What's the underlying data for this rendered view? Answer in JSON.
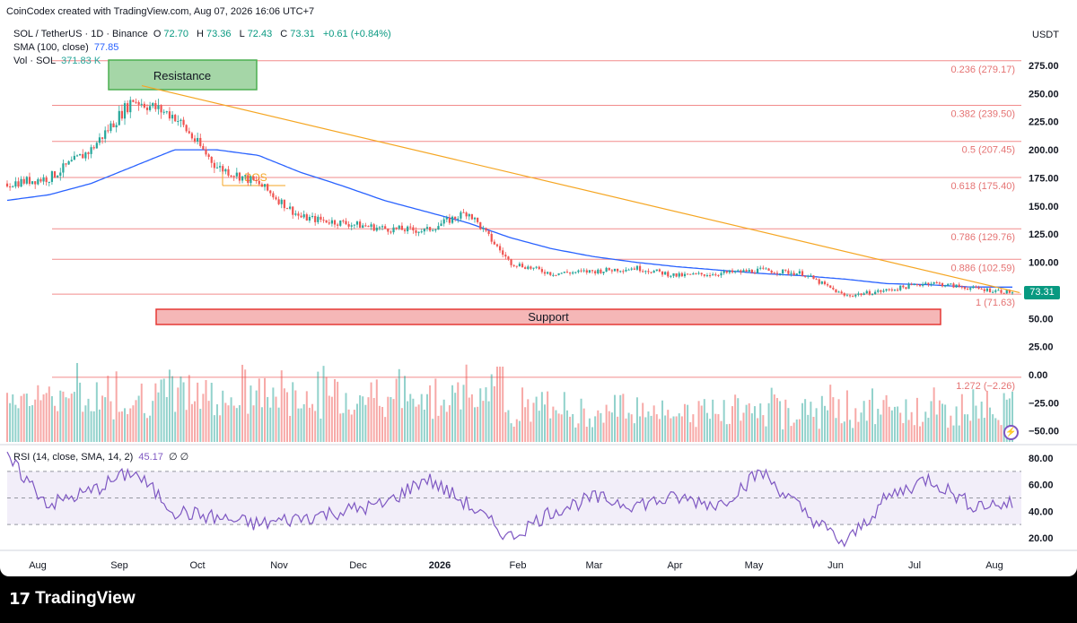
{
  "attribution": "CoinCodex created with TradingView.com, Aug 07, 2026 16:06 UTC+7",
  "legend": {
    "symbol": "SOL / TetherUS · 1D · Binance",
    "o_label": "O",
    "o": "72.70",
    "h_label": "H",
    "h": "73.36",
    "l_label": "L",
    "l": "72.43",
    "c_label": "C",
    "c": "73.31",
    "change": "+0.61 (+0.84%)",
    "sma_label": "SMA (100, close)",
    "sma": "77.85",
    "vol_label": "Vol · SOL",
    "vol": "371.83 K",
    "rsi_label": "RSI (14, close, SMA, 14, 2)",
    "rsi": "45.17",
    "rsi_extra": "∅ ∅"
  },
  "currency": "USDT",
  "price_tag": "73.31",
  "annotations": {
    "resistance": "Resistance",
    "support": "Support",
    "bos": "BOS"
  },
  "brand": {
    "mark": "17",
    "name": "TradingView"
  },
  "colors": {
    "up": "#26a69a",
    "down": "#ef5350",
    "sma": "#2962ff",
    "fib": "#f28b8b",
    "trend": "#f5a623",
    "rsi": "#7e57c2",
    "support_fill": "#f5b7b7",
    "resistance_fill": "#a5d6a7"
  },
  "chart_data": {
    "type": "candlestick",
    "price_axis": {
      "ticks": [
        275,
        250,
        225,
        200,
        175,
        150,
        125,
        100,
        75,
        50,
        25,
        0,
        -25,
        -50
      ],
      "tick_labels": [
        "275.00",
        "250.00",
        "225.00",
        "200.00",
        "175.00",
        "150.00",
        "125.00",
        "100.00",
        "75.00",
        "50.00",
        "25.00",
        "0.00",
        "−25.00",
        "−50.00"
      ],
      "range": [
        -55,
        290
      ]
    },
    "time_axis": [
      "Aug",
      "Sep",
      "Oct",
      "Nov",
      "Dec",
      "2026",
      "Feb",
      "Mar",
      "Apr",
      "May",
      "Jun",
      "Jul",
      "Aug"
    ],
    "fib_levels": [
      {
        "label": "0.236 (279.17)",
        "value": 279.17
      },
      {
        "label": "0.382 (239.50)",
        "value": 239.5
      },
      {
        "label": "0.5 (207.45)",
        "value": 207.45
      },
      {
        "label": "0.618 (175.40)",
        "value": 175.4
      },
      {
        "label": "0.786 (129.76)",
        "value": 129.76
      },
      {
        "label": "0.886 (102.59)",
        "value": 102.59
      },
      {
        "label": "1 (71.63)",
        "value": 71.63
      },
      {
        "label": "1.272 (−2.26)",
        "value": -2.26
      }
    ],
    "price_path": {
      "months": [
        "Aug",
        "mid-Aug",
        "Sep",
        "mid-Sep",
        "Oct",
        "mid-Oct",
        "Nov",
        "mid-Nov",
        "Dec",
        "mid-Dec",
        "Jan",
        "mid-Jan",
        "Feb",
        "mid-Feb",
        "Mar",
        "mid-Mar",
        "Apr",
        "mid-Apr",
        "May",
        "mid-May",
        "Jun",
        "mid-Jun",
        "Jul",
        "mid-Jul",
        "Aug"
      ],
      "close": [
        170,
        175,
        200,
        245,
        230,
        185,
        170,
        140,
        135,
        130,
        128,
        145,
        100,
        90,
        92,
        95,
        88,
        90,
        93,
        90,
        70,
        75,
        82,
        77,
        73.31
      ]
    },
    "sma_path": [
      155,
      160,
      170,
      185,
      200,
      200,
      195,
      180,
      168,
      155,
      145,
      135,
      122,
      112,
      105,
      100,
      96,
      93,
      90,
      88,
      85,
      81,
      80,
      78,
      77.85
    ],
    "trendline": {
      "from": 257,
      "to": 73
    },
    "rsi_axis": {
      "ticks": [
        80,
        60,
        40,
        20
      ],
      "tick_labels": [
        "80.00",
        "60.00",
        "40.00",
        "20.00"
      ],
      "upper_band": 70,
      "lower_band": 30
    },
    "rsi_path": [
      80,
      45,
      55,
      70,
      40,
      35,
      30,
      35,
      40,
      45,
      65,
      45,
      20,
      40,
      50,
      45,
      50,
      45,
      70,
      40,
      15,
      50,
      65,
      45,
      45.17
    ]
  }
}
